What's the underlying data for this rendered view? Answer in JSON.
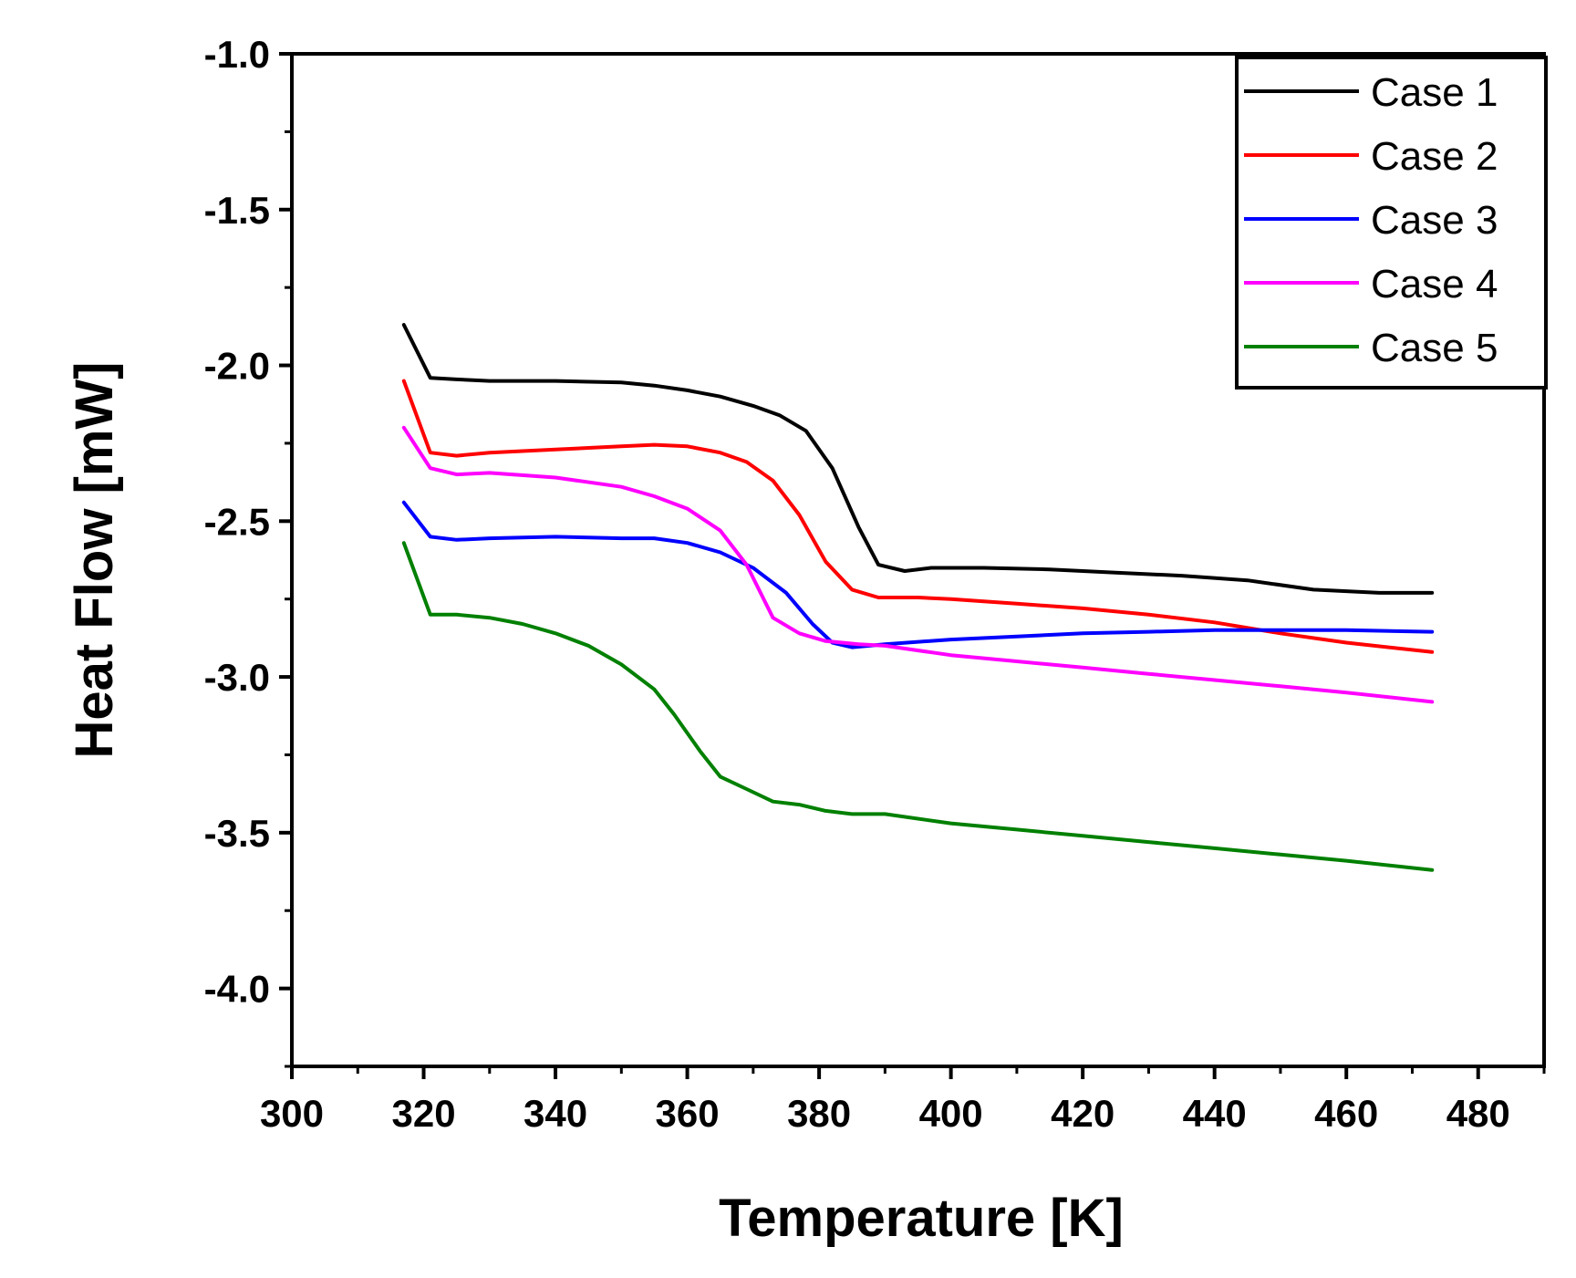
{
  "chart_data": {
    "type": "line",
    "title": "",
    "xlabel": "Temperature [K]",
    "ylabel": "Heat Flow [mW]",
    "xlim": [
      300,
      490
    ],
    "ylim": [
      -4.25,
      -1.0
    ],
    "xticks": [
      300,
      320,
      340,
      360,
      380,
      400,
      420,
      440,
      460,
      480
    ],
    "yticks": [
      -1.0,
      -1.5,
      -2.0,
      -2.5,
      -3.0,
      -3.5,
      -4.0
    ],
    "xtick_labels": [
      "300",
      "320",
      "340",
      "360",
      "380",
      "400",
      "420",
      "440",
      "460",
      "480"
    ],
    "ytick_labels": [
      "-1.0",
      "-1.5",
      "-2.0",
      "-2.5",
      "-3.0",
      "-3.5",
      "-4.0"
    ],
    "legend_position": "top-right",
    "series": [
      {
        "name": "Case 1",
        "color": "#000000",
        "x": [
          317,
          321,
          325,
          330,
          340,
          350,
          355,
          360,
          365,
          370,
          374,
          378,
          382,
          386,
          389,
          393,
          397,
          405,
          415,
          425,
          435,
          445,
          455,
          465,
          473
        ],
        "y": [
          -1.87,
          -2.04,
          -2.045,
          -2.05,
          -2.05,
          -2.055,
          -2.065,
          -2.08,
          -2.1,
          -2.13,
          -2.16,
          -2.21,
          -2.33,
          -2.52,
          -2.64,
          -2.66,
          -2.65,
          -2.65,
          -2.655,
          -2.665,
          -2.675,
          -2.69,
          -2.72,
          -2.73,
          -2.73
        ]
      },
      {
        "name": "Case 2",
        "color": "#ff0000",
        "x": [
          317,
          321,
          325,
          330,
          340,
          350,
          355,
          360,
          365,
          369,
          373,
          377,
          381,
          385,
          389,
          395,
          400,
          410,
          420,
          430,
          440,
          450,
          460,
          473
        ],
        "y": [
          -2.05,
          -2.28,
          -2.29,
          -2.28,
          -2.27,
          -2.26,
          -2.255,
          -2.26,
          -2.28,
          -2.31,
          -2.37,
          -2.48,
          -2.63,
          -2.72,
          -2.745,
          -2.745,
          -2.75,
          -2.765,
          -2.78,
          -2.8,
          -2.825,
          -2.86,
          -2.89,
          -2.92
        ]
      },
      {
        "name": "Case 3",
        "color": "#0000ff",
        "x": [
          317,
          321,
          325,
          330,
          340,
          350,
          355,
          360,
          365,
          370,
          375,
          379,
          382,
          385,
          390,
          400,
          410,
          420,
          430,
          440,
          450,
          460,
          473
        ],
        "y": [
          -2.44,
          -2.55,
          -2.56,
          -2.555,
          -2.55,
          -2.555,
          -2.555,
          -2.57,
          -2.6,
          -2.65,
          -2.73,
          -2.83,
          -2.89,
          -2.905,
          -2.895,
          -2.88,
          -2.87,
          -2.86,
          -2.855,
          -2.85,
          -2.85,
          -2.85,
          -2.855
        ]
      },
      {
        "name": "Case 4",
        "color": "#ff00ff",
        "x": [
          317,
          321,
          325,
          330,
          340,
          350,
          355,
          360,
          365,
          369,
          373,
          377,
          381,
          386,
          390,
          400,
          410,
          420,
          430,
          440,
          450,
          460,
          473
        ],
        "y": [
          -2.2,
          -2.33,
          -2.35,
          -2.345,
          -2.36,
          -2.39,
          -2.42,
          -2.46,
          -2.53,
          -2.64,
          -2.81,
          -2.86,
          -2.885,
          -2.895,
          -2.9,
          -2.93,
          -2.95,
          -2.97,
          -2.99,
          -3.01,
          -3.03,
          -3.05,
          -3.08
        ]
      },
      {
        "name": "Case 5",
        "color": "#008000",
        "x": [
          317,
          321,
          325,
          330,
          335,
          340,
          345,
          350,
          355,
          358,
          362,
          365,
          369,
          373,
          377,
          381,
          385,
          390,
          400,
          410,
          420,
          430,
          440,
          450,
          460,
          473
        ],
        "y": [
          -2.57,
          -2.8,
          -2.8,
          -2.81,
          -2.83,
          -2.86,
          -2.9,
          -2.96,
          -3.04,
          -3.12,
          -3.24,
          -3.32,
          -3.36,
          -3.4,
          -3.41,
          -3.43,
          -3.44,
          -3.44,
          -3.47,
          -3.49,
          -3.51,
          -3.53,
          -3.55,
          -3.57,
          -3.59,
          -3.62
        ]
      }
    ]
  }
}
